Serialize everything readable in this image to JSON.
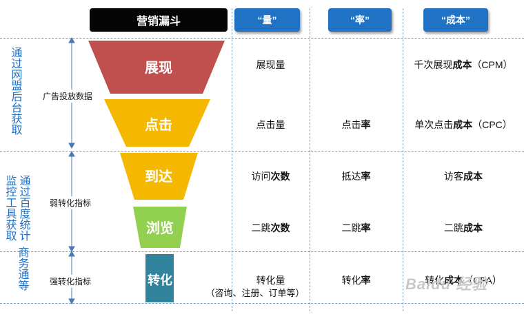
{
  "headers": {
    "funnel": "营销漏斗",
    "volume": "“量”",
    "rate": "“率”",
    "cost": "“成本”"
  },
  "stages": [
    {
      "name": "展现",
      "color": "#c0504d"
    },
    {
      "name": "点击",
      "color": "#f5b800"
    },
    {
      "name": "到达",
      "color": "#f5b800"
    },
    {
      "name": "浏览",
      "color": "#92d050"
    },
    {
      "name": "转化",
      "color": "#31849b"
    }
  ],
  "rows": [
    {
      "volume": [
        "展现量",
        ""
      ],
      "rate": [
        "",
        ""
      ],
      "cost": [
        "千次展现",
        "成本",
        "（CPM）"
      ]
    },
    {
      "volume": [
        "点击量",
        ""
      ],
      "rate": [
        "点击",
        "率"
      ],
      "cost": [
        "单次点击",
        "成本",
        "（CPC）"
      ]
    },
    {
      "volume": [
        "访问",
        "次数"
      ],
      "rate": [
        "抵达",
        "率"
      ],
      "cost": [
        "访客",
        "成本",
        ""
      ]
    },
    {
      "volume": [
        "二跳",
        "次数"
      ],
      "rate": [
        "二跳",
        "率"
      ],
      "cost": [
        "二跳",
        "成本",
        ""
      ]
    },
    {
      "volume": [
        "转化量",
        ""
      ],
      "volume_sub": "（咨询、注册、订单等）",
      "rate": [
        "转化",
        "率"
      ],
      "cost": [
        "转化",
        "成本",
        "（CPA）"
      ]
    }
  ],
  "side_groups": {
    "network": "通过网盟后台获取",
    "monitor": "监控工具获取",
    "baidu": "通过百度统计",
    "business": "商务通等"
  },
  "mid_labels": {
    "ad_data": "广告投放数据",
    "weak": "弱转化指标",
    "strong": "强转化指标"
  },
  "watermark": "Baidu 经验"
}
